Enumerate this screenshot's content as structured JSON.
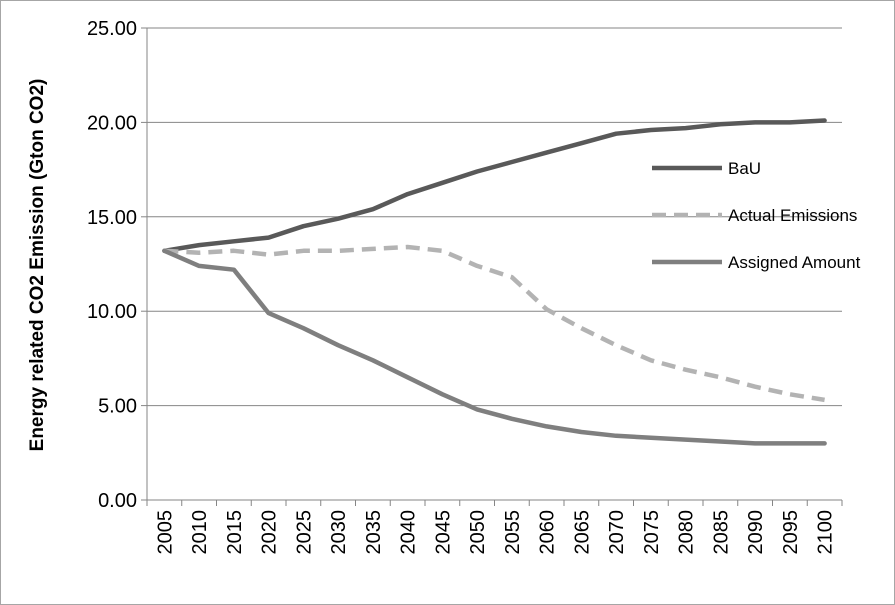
{
  "chart_data": {
    "type": "line",
    "title": "",
    "xlabel": "",
    "ylabel": "Energy related CO2 Emission  (Gton CO2)",
    "x": [
      "2005",
      "2010",
      "2015",
      "2020",
      "2025",
      "2030",
      "2035",
      "2040",
      "2045",
      "2050",
      "2055",
      "2060",
      "2065",
      "2070",
      "2075",
      "2080",
      "2085",
      "2090",
      "2095",
      "2100"
    ],
    "yticks": [
      "0.00",
      "5.00",
      "10.00",
      "15.00",
      "20.00",
      "25.00"
    ],
    "ylim": [
      0,
      25
    ],
    "grid": "horizontal",
    "legend_position": "right",
    "series": [
      {
        "name": "BaU",
        "style": "solid",
        "color": "#595959",
        "values": [
          13.2,
          13.5,
          13.7,
          13.9,
          14.5,
          14.9,
          15.4,
          16.2,
          16.8,
          17.4,
          17.9,
          18.4,
          18.9,
          19.4,
          19.6,
          19.7,
          19.9,
          20.0,
          20.0,
          20.1
        ]
      },
      {
        "name": "Actual Emissions",
        "style": "dashed",
        "color": "#b3b3b3",
        "values": [
          13.2,
          13.1,
          13.2,
          13.0,
          13.2,
          13.2,
          13.3,
          13.4,
          13.2,
          12.4,
          11.8,
          10.1,
          9.1,
          8.2,
          7.4,
          6.9,
          6.5,
          6.0,
          5.6,
          5.3
        ]
      },
      {
        "name": "Assigned Amount",
        "style": "solid",
        "color": "#7f7f7f",
        "values": [
          13.2,
          12.4,
          12.2,
          9.9,
          9.1,
          8.2,
          7.4,
          6.5,
          5.6,
          4.8,
          4.3,
          3.9,
          3.6,
          3.4,
          3.3,
          3.2,
          3.1,
          3.0,
          3.0,
          3.0
        ]
      }
    ]
  }
}
